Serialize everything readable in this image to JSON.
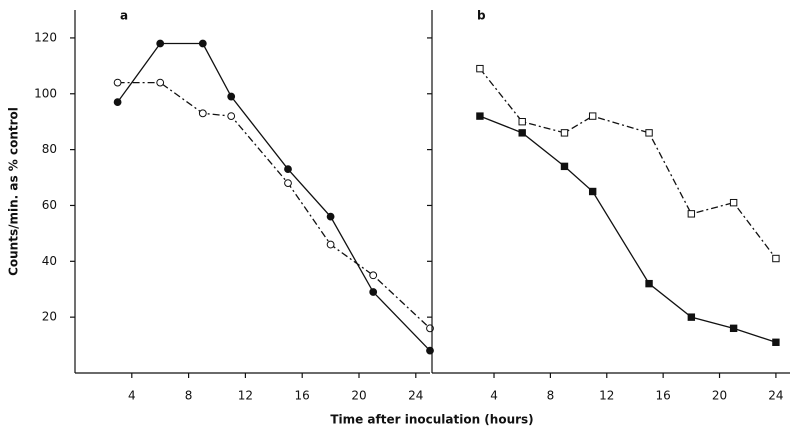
{
  "chart_data": [
    {
      "type": "line",
      "panel_label": "a",
      "ylabel": "Counts/min. as % control",
      "xlabel": "Time after inoculation (hours)",
      "xlim": [
        0,
        25
      ],
      "xticks": [
        4,
        8,
        12,
        16,
        20,
        24
      ],
      "ylim": [
        0,
        130
      ],
      "yticks": [
        20,
        40,
        60,
        80,
        100,
        120
      ],
      "ytick_labels": true,
      "series": [
        {
          "color": "#111111",
          "marker": "circle",
          "filled": true,
          "dash": "solid",
          "x": [
            3,
            6,
            9,
            11,
            15,
            18,
            21,
            25
          ],
          "values": [
            97,
            118,
            118,
            99,
            73,
            56,
            29,
            8
          ]
        },
        {
          "color": "#111111",
          "marker": "circle",
          "filled": false,
          "dash": "dashdot",
          "x": [
            3,
            6,
            9,
            11,
            15,
            18,
            21,
            25
          ],
          "values": [
            104,
            104,
            93,
            92,
            68,
            46,
            35,
            16
          ]
        }
      ]
    },
    {
      "type": "line",
      "panel_label": "b",
      "xlim": [
        -0.4,
        25
      ],
      "xticks": [
        4,
        8,
        12,
        16,
        20,
        24
      ],
      "ylim": [
        0,
        130
      ],
      "yticks": [
        20,
        40,
        60,
        80,
        100,
        120
      ],
      "ytick_labels": false,
      "series": [
        {
          "color": "#111111",
          "marker": "square",
          "filled": true,
          "dash": "solid",
          "x": [
            3,
            6,
            9,
            11,
            15,
            18,
            21,
            24
          ],
          "values": [
            92,
            86,
            74,
            65,
            32,
            20,
            16,
            11
          ]
        },
        {
          "color": "#111111",
          "marker": "square",
          "filled": false,
          "dash": "dashdot",
          "x": [
            3,
            6,
            9,
            11,
            15,
            18,
            21,
            24
          ],
          "values": [
            109,
            90,
            86,
            92,
            86,
            57,
            61,
            41
          ]
        }
      ]
    }
  ]
}
